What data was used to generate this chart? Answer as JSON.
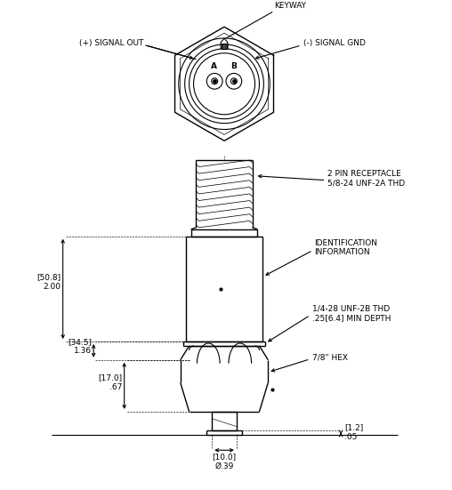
{
  "bg_color": "#ffffff",
  "line_color": "#000000",
  "line_width": 0.8,
  "annotations": {
    "keyway": "KEYWAY",
    "signal_out": "(+) SIGNAL OUT",
    "signal_gnd": "(-) SIGNAL GND",
    "pin_receptacle": "2 PIN RECEPTACLE\n5/8-24 UNF-2A THD",
    "identification": "IDENTIFICATION\nINFORMATION",
    "thread_info": "1/4-28 UNF-2B THD\n.25[6.4] MIN DEPTH",
    "hex_info": "7/8\" HEX",
    "dim_50_8": "[50.8]\n2.00",
    "dim_34_5": "[34.5]\n1.36",
    "dim_17_0": "[17.0]\n.67",
    "dim_10_0": "[10.0]\nØ.39",
    "dim_1_2": "[1.2]\n.05"
  }
}
